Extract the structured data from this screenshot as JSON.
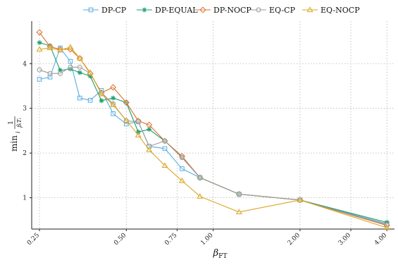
{
  "chart_data": {
    "type": "line",
    "xlabel": "β_FT",
    "ylabel": "min_i 1/(β_i T_i)",
    "x_scale": "log",
    "xlim": [
      0.235,
      4.25
    ],
    "ylim": [
      0.3,
      4.95
    ],
    "x_ticks": [
      0.25,
      0.5,
      0.75,
      1.0,
      2.0,
      3.0,
      4.0
    ],
    "x_tick_labels": [
      "0.25",
      "0.50",
      "0.75",
      "1.00",
      "2.00",
      "3.00",
      "4.00"
    ],
    "y_ticks": [
      1,
      2,
      3,
      4
    ],
    "y_tick_labels": [
      "1",
      "2",
      "3",
      "4"
    ],
    "grid": true,
    "legend_position": "top",
    "series": [
      {
        "name": "DP-CP",
        "color": "#5aaee0",
        "marker": "square",
        "x": [
          0.25,
          0.272,
          0.295,
          0.32,
          0.345,
          0.375,
          0.41,
          0.45,
          0.5,
          0.55,
          0.6,
          0.68,
          0.78,
          0.9,
          1.23,
          2.0,
          4.0
        ],
        "y": [
          3.65,
          3.7,
          4.35,
          4.05,
          3.23,
          3.18,
          3.4,
          2.88,
          2.65,
          2.7,
          2.15,
          2.1,
          1.65,
          1.45,
          1.08,
          0.95,
          0.42
        ]
      },
      {
        "name": "DP-EQUAL",
        "color": "#1e9e6e",
        "marker": "star",
        "x": [
          0.25,
          0.272,
          0.295,
          0.32,
          0.345,
          0.375,
          0.41,
          0.45,
          0.5,
          0.55,
          0.6,
          0.68,
          0.78,
          0.9,
          1.23,
          2.0,
          4.0
        ],
        "y": [
          4.47,
          4.4,
          3.85,
          3.88,
          3.8,
          3.72,
          3.17,
          3.23,
          3.13,
          2.47,
          2.53,
          2.27,
          1.9,
          1.45,
          1.08,
          0.95,
          0.45
        ]
      },
      {
        "name": "DP-NOCP",
        "color": "#d9702a",
        "marker": "diamond",
        "x": [
          0.25,
          0.272,
          0.295,
          0.32,
          0.345,
          0.375,
          0.41,
          0.45,
          0.5,
          0.55,
          0.6,
          0.68,
          0.78,
          0.9,
          1.23,
          2.0,
          4.0
        ],
        "y": [
          4.7,
          4.38,
          4.32,
          4.32,
          4.12,
          3.78,
          3.35,
          3.47,
          3.13,
          2.72,
          2.63,
          2.27,
          1.93,
          1.45,
          1.08,
          0.95,
          0.38
        ]
      },
      {
        "name": "EQ-CP",
        "color": "#9a9a9a",
        "marker": "circle",
        "x": [
          0.25,
          0.272,
          0.295,
          0.32,
          0.345,
          0.375,
          0.41,
          0.45,
          0.5,
          0.55,
          0.6,
          0.68,
          0.78,
          0.9,
          1.23,
          2.0,
          4.0
        ],
        "y": [
          3.86,
          3.78,
          3.78,
          3.92,
          3.92,
          3.78,
          3.35,
          3.1,
          2.72,
          2.7,
          2.15,
          2.27,
          1.9,
          1.45,
          1.08,
          0.95,
          0.4
        ]
      },
      {
        "name": "EQ-NOCP",
        "color": "#d9a520",
        "marker": "triangle",
        "x": [
          0.25,
          0.272,
          0.295,
          0.32,
          0.345,
          0.375,
          0.41,
          0.45,
          0.5,
          0.55,
          0.6,
          0.68,
          0.78,
          0.9,
          1.23,
          2.0,
          4.0
        ],
        "y": [
          4.32,
          4.35,
          4.3,
          4.37,
          4.12,
          3.8,
          3.32,
          3.08,
          2.73,
          2.4,
          2.07,
          1.72,
          1.38,
          1.03,
          0.68,
          0.95,
          0.33
        ]
      }
    ]
  }
}
